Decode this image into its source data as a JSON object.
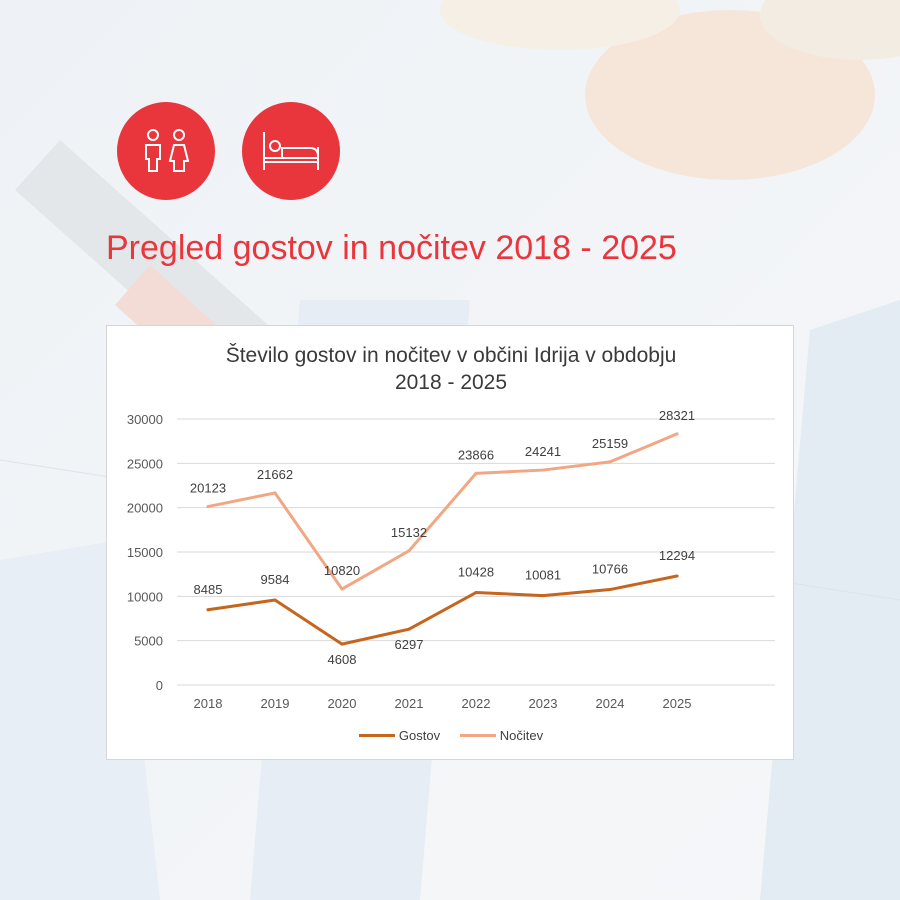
{
  "header": {
    "headline": "Pregled gostov in nočitev 2018 - 2025",
    "accent_color": "#e8363c",
    "icons": [
      "guests-icon",
      "bed-icon"
    ]
  },
  "chart_data": {
    "type": "line",
    "title_line1": "Število gostov in nočitev v občini Idrija v obdobju",
    "title_line2": "2018 - 2025",
    "categories": [
      "2018",
      "2019",
      "2020",
      "2021",
      "2022",
      "2023",
      "2024",
      "2025"
    ],
    "ylim": [
      0,
      30000
    ],
    "yticks": [
      0,
      5000,
      10000,
      15000,
      20000,
      25000,
      30000
    ],
    "grid": true,
    "legend_position": "bottom",
    "series": [
      {
        "name": "Gostov",
        "color": "#c5651e",
        "values": [
          8485,
          9584,
          4608,
          6297,
          10428,
          10081,
          10766,
          12294
        ]
      },
      {
        "name": "Nočitev",
        "color": "#f1a783",
        "values": [
          20123,
          21662,
          10820,
          15132,
          23866,
          24241,
          25159,
          28321
        ]
      }
    ]
  }
}
